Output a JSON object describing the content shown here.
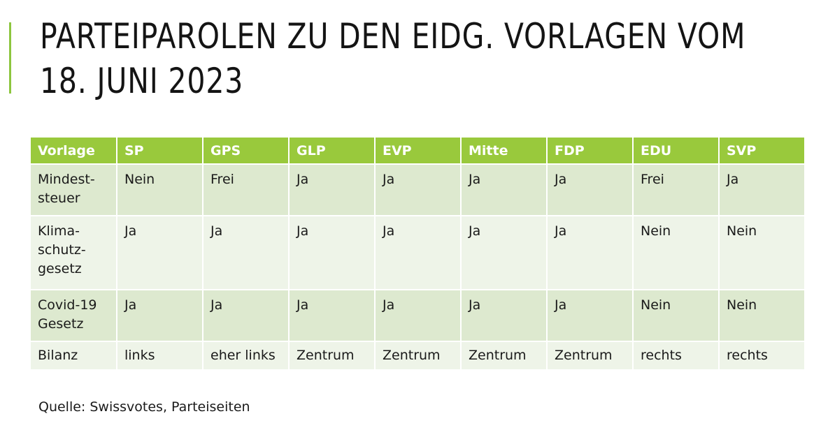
{
  "title": {
    "line1": "PARTEIPAROLEN ZU DEN EIDG. VORLAGEN VOM",
    "line2": "18. JUNI 2023"
  },
  "colors": {
    "accent": "#8dc63f",
    "header_bg": "#99c93c",
    "row_dark": "#dde9cf",
    "row_light": "#eef4e8"
  },
  "table": {
    "headers": [
      "Vorlage",
      "SP",
      "GPS",
      "GLP",
      "EVP",
      "Mitte",
      "FDP",
      "EDU",
      "SVP"
    ],
    "rows": [
      {
        "vorlage": [
          "Mindest-",
          "steuer"
        ],
        "values": [
          "Nein",
          "Frei",
          "Ja",
          "Ja",
          "Ja",
          "Ja",
          "Frei",
          "Ja"
        ]
      },
      {
        "vorlage": [
          "Klima-",
          "schutz-",
          "gesetz"
        ],
        "values": [
          "Ja",
          "Ja",
          "Ja",
          "Ja",
          "Ja",
          "Ja",
          "Nein",
          "Nein"
        ]
      },
      {
        "vorlage": [
          "Covid-19",
          "Gesetz"
        ],
        "values": [
          "Ja",
          "Ja",
          "Ja",
          "Ja",
          "Ja",
          "Ja",
          "Nein",
          "Nein"
        ]
      },
      {
        "vorlage": [
          "Bilanz"
        ],
        "values": [
          "links",
          "eher links",
          "Zentrum",
          "Zentrum",
          "Zentrum",
          "Zentrum",
          "rechts",
          "rechts"
        ]
      }
    ]
  },
  "source": "Quelle: Swissvotes, Parteiseiten"
}
